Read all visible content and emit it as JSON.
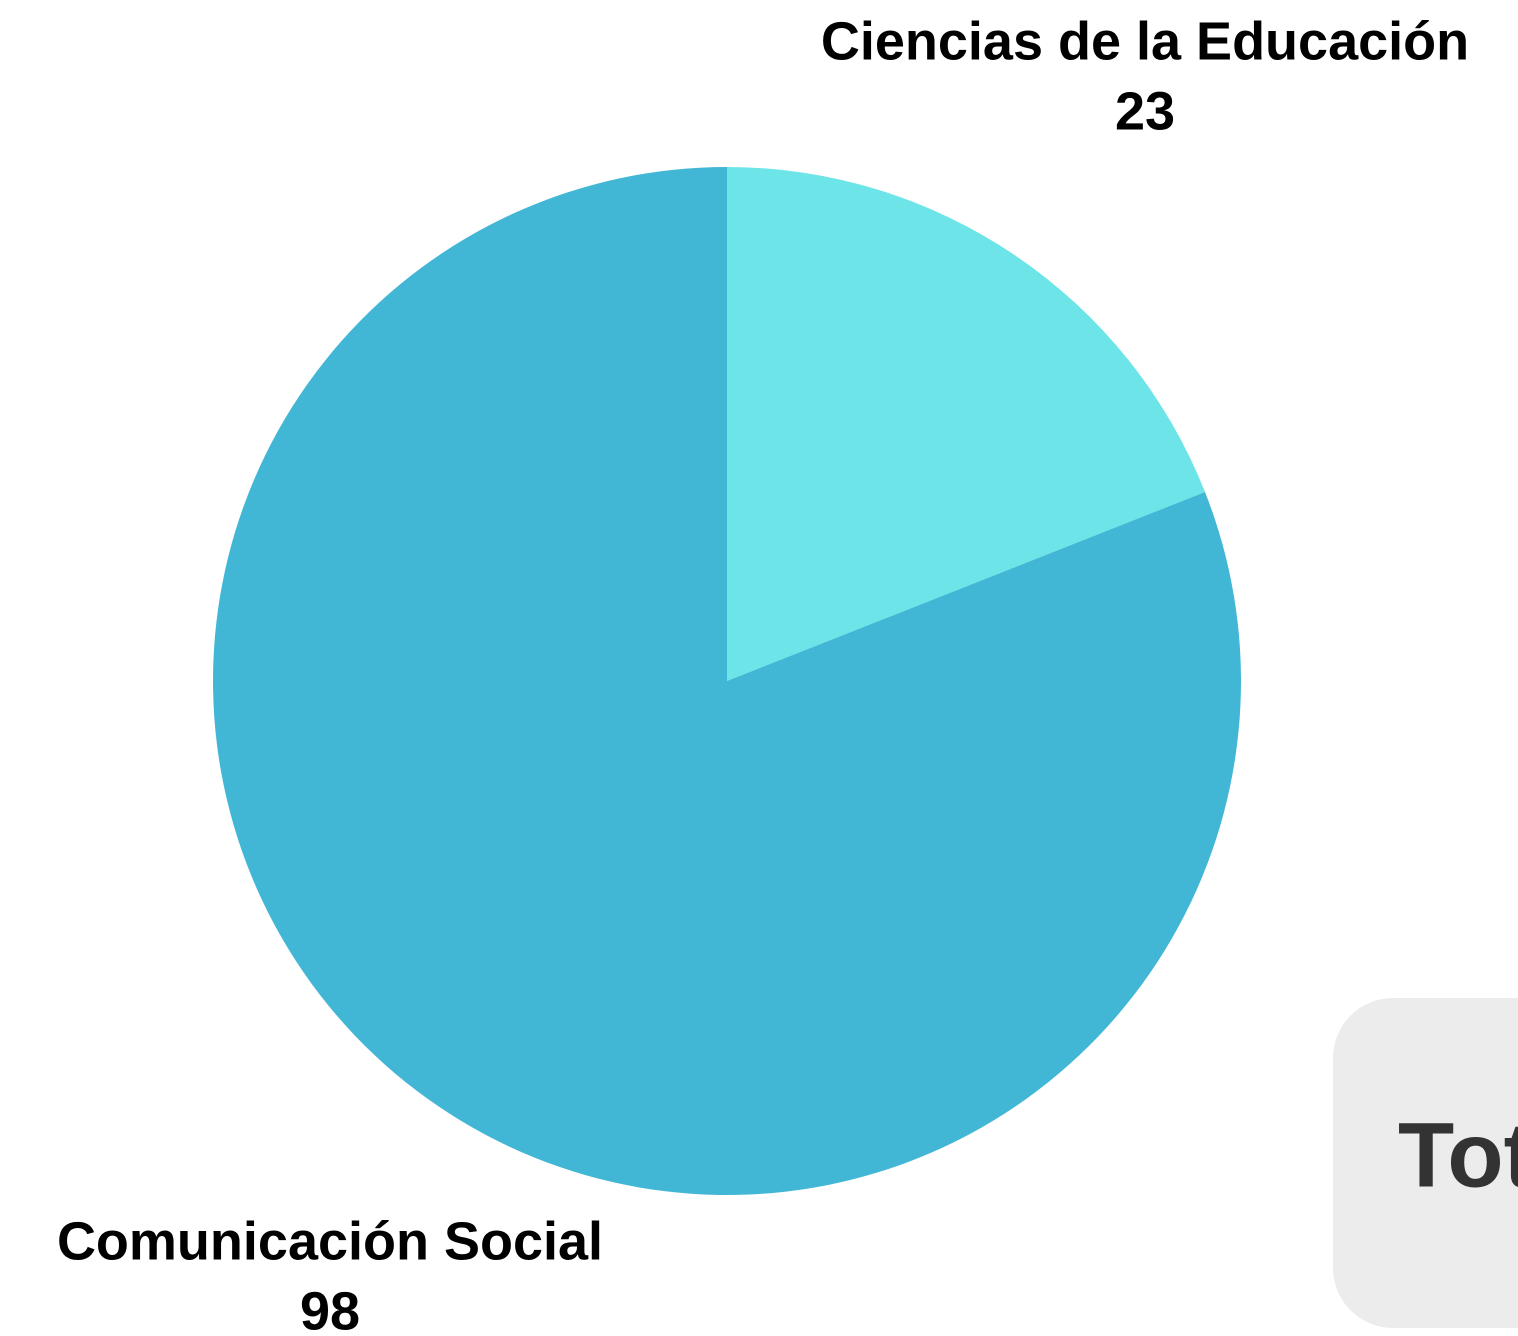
{
  "chart_data": {
    "type": "pie",
    "categories": [
      "Ciencias de la Educación",
      "Comunicación Social"
    ],
    "values": [
      23,
      98
    ],
    "colors": [
      "#6ce4e8",
      "#42b7d5"
    ],
    "annotation": "Tot"
  }
}
